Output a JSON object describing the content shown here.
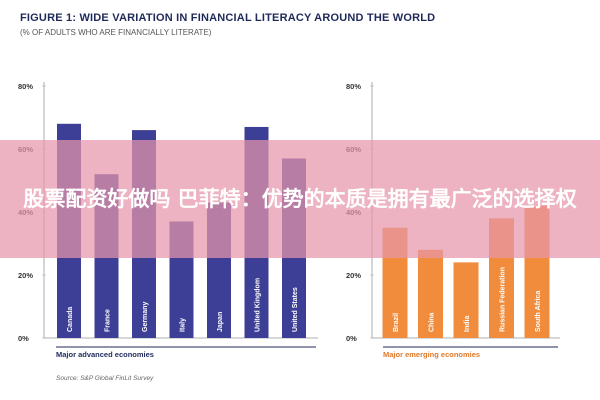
{
  "header": {
    "title": "FIGURE 1: WIDE VARIATION IN FINANCIAL LITERACY AROUND THE WORLD",
    "subtitle": "(% OF ADULTS WHO ARE FINANCIALLY LITERATE)"
  },
  "source": "Source: S&P Global FinLit Survey",
  "overlay": {
    "text": "股票配资好做吗 巴菲特：优势的本质是拥有最广泛的选择权"
  },
  "chart_data": [
    {
      "type": "bar",
      "group_label": "Major advanced economies",
      "categories": [
        "Canada",
        "France",
        "Germany",
        "Italy",
        "Japan",
        "United Kingdom",
        "United States"
      ],
      "values": [
        68,
        52,
        66,
        37,
        43,
        67,
        57
      ],
      "ylim": [
        0,
        80
      ],
      "yticks": [
        "0%",
        "20%",
        "40%",
        "60%",
        "80%"
      ],
      "color": "#3d3f97"
    },
    {
      "type": "bar",
      "group_label": "Major emerging economies",
      "categories": [
        "Brazil",
        "China",
        "India",
        "Russian Federation",
        "South Africa"
      ],
      "values": [
        35,
        28,
        24,
        38,
        42
      ],
      "ylim": [
        0,
        80
      ],
      "yticks": [
        "0%",
        "20%",
        "40%",
        "60%",
        "80%"
      ],
      "color": "#f08c3c"
    }
  ]
}
